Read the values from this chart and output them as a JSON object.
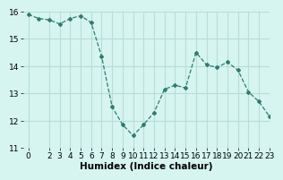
{
  "x": [
    0,
    1,
    2,
    3,
    4,
    5,
    6,
    7,
    8,
    9,
    10,
    11,
    12,
    13,
    14,
    15,
    16,
    17,
    18,
    19,
    20,
    21,
    22,
    23
  ],
  "y": [
    15.9,
    15.75,
    15.7,
    15.55,
    15.75,
    15.85,
    15.6,
    14.35,
    12.5,
    11.85,
    11.45,
    11.85,
    12.3,
    13.15,
    13.3,
    13.2,
    14.5,
    14.05,
    13.95,
    14.15,
    13.85,
    13.05,
    12.7,
    12.15
  ],
  "line_color": "#2e7d6e",
  "marker": "D",
  "marker_size": 2,
  "bg_color": "#d6f5f0",
  "grid_color": "#b8ddd8",
  "xlabel": "Humidex (Indice chaleur)",
  "ylim": [
    11,
    16
  ],
  "xlim": [
    -0.5,
    23
  ],
  "yticks": [
    11,
    12,
    13,
    14,
    15,
    16
  ],
  "xticks": [
    0,
    2,
    3,
    4,
    5,
    6,
    7,
    8,
    9,
    10,
    11,
    12,
    13,
    14,
    15,
    16,
    17,
    18,
    19,
    20,
    21,
    22,
    23
  ],
  "xtick_labels": [
    "0",
    "2",
    "3",
    "4",
    "5",
    "6",
    "7",
    "8",
    "9",
    "10",
    "11",
    "12",
    "13",
    "14",
    "15",
    "16",
    "17",
    "18",
    "19",
    "20",
    "21",
    "22",
    "23"
  ],
  "tick_fontsize": 6.5,
  "xlabel_fontsize": 7.5
}
